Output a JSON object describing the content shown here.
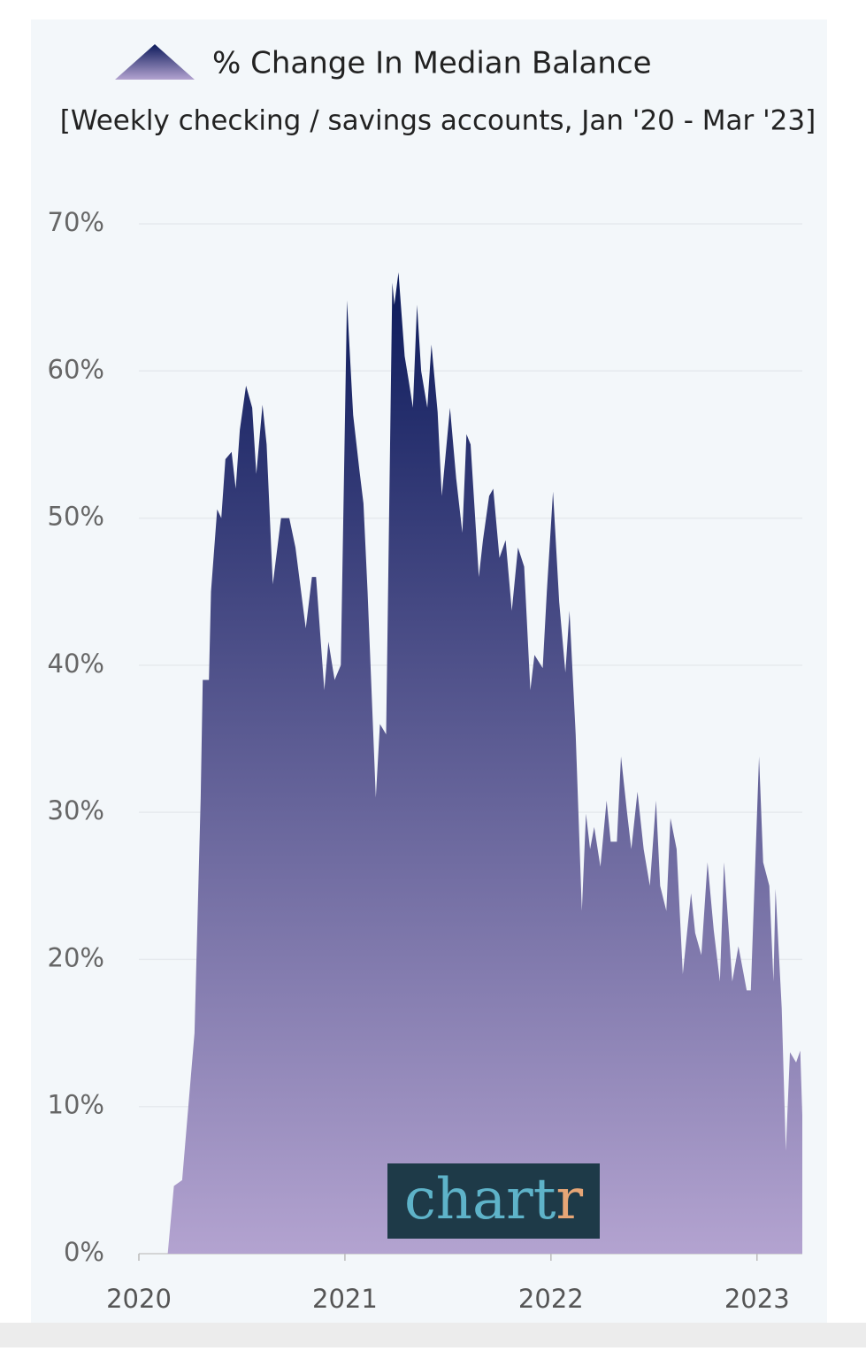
{
  "chart_data": {
    "type": "area",
    "subtitle": "[Weekly checking / savings accounts, Jan '20 - Mar '23]",
    "x": [
      2020.14,
      2020.17,
      2020.21,
      2020.24,
      2020.27,
      2020.3,
      2020.31,
      2020.34,
      2020.35,
      2020.38,
      2020.4,
      2020.42,
      2020.45,
      2020.47,
      2020.49,
      2020.52,
      2020.55,
      2020.57,
      2020.6,
      2020.62,
      2020.65,
      2020.69,
      2020.73,
      2020.76,
      2020.81,
      2020.84,
      2020.86,
      2020.9,
      2020.92,
      2020.95,
      2020.98,
      2021.01,
      2021.04,
      2021.07,
      2021.09,
      2021.11,
      2021.15,
      2021.17,
      2021.2,
      2021.23,
      2021.24,
      2021.26,
      2021.29,
      2021.31,
      2021.33,
      2021.35,
      2021.37,
      2021.4,
      2021.42,
      2021.45,
      2021.47,
      2021.51,
      2021.54,
      2021.57,
      2021.59,
      2021.61,
      2021.65,
      2021.67,
      2021.7,
      2021.72,
      2021.75,
      2021.78,
      2021.81,
      2021.84,
      2021.87,
      2021.9,
      2021.92,
      2021.96,
      2021.98,
      2022.01,
      2022.04,
      2022.07,
      2022.09,
      2022.12,
      2022.15,
      2022.17,
      2022.19,
      2022.21,
      2022.24,
      2022.27,
      2022.29,
      2022.32,
      2022.34,
      2022.37,
      2022.39,
      2022.42,
      2022.45,
      2022.48,
      2022.51,
      2022.53,
      2022.56,
      2022.58,
      2022.61,
      2022.64,
      2022.68,
      2022.7,
      2022.73,
      2022.76,
      2022.79,
      2022.82,
      2022.84,
      2022.88,
      2022.91,
      2022.95,
      2022.97,
      2023.01,
      2023.03,
      2023.06,
      2023.08,
      2023.09,
      2023.12,
      2023.14,
      2023.16,
      2023.19,
      2023.21,
      2023.22
    ],
    "series": [
      {
        "name": "% Change In Median Balance",
        "color": "#0c1a5b",
        "gradient_end": "#b3a3d0",
        "values": [
          0,
          4.6,
          5,
          10,
          15,
          31,
          39,
          39,
          45,
          50.6,
          50,
          54,
          54.5,
          52,
          56,
          59,
          57.5,
          53,
          57.7,
          55,
          45.5,
          50,
          50,
          48,
          42.5,
          46,
          46,
          38.3,
          41.6,
          39,
          40,
          64.8,
          57,
          53.3,
          51,
          45,
          31,
          36,
          35.3,
          66,
          64.5,
          66.7,
          61,
          59.3,
          57.5,
          64.5,
          60,
          57.5,
          61.8,
          57.2,
          51.5,
          57.5,
          52.7,
          49,
          55.7,
          55,
          46,
          48.5,
          51.5,
          52,
          47.3,
          48.5,
          43.7,
          48,
          46.7,
          38.3,
          40.7,
          39.8,
          45,
          51.8,
          44.3,
          39.5,
          43.7,
          35.3,
          23.3,
          29.9,
          27.5,
          29,
          26.3,
          30.8,
          28,
          28,
          33.8,
          29.9,
          27.5,
          31.4,
          27.5,
          25,
          30.8,
          25,
          23.3,
          29.6,
          27.5,
          19,
          24.5,
          21.8,
          20.3,
          26.6,
          22,
          18.5,
          26.6,
          18.5,
          20.9,
          17.9,
          17.9,
          33.8,
          26.6,
          25,
          18.5,
          24.8,
          16.7,
          7,
          13.7,
          13,
          13.8,
          9.4
        ]
      }
    ],
    "xlim": [
      2020,
      2023.22
    ],
    "xticks": [
      2020,
      2021,
      2022,
      2023
    ],
    "ylim": [
      0,
      70
    ],
    "yticks": [
      {
        "value": 0,
        "label": "0%"
      },
      {
        "value": 10,
        "label": "10%"
      },
      {
        "value": 20,
        "label": "20%"
      },
      {
        "value": 30,
        "label": "30%"
      },
      {
        "value": 40,
        "label": "40%"
      },
      {
        "value": 50,
        "label": "50%"
      },
      {
        "value": 60,
        "label": "60%"
      },
      {
        "value": 70,
        "label": "70%"
      }
    ],
    "grid": true
  },
  "logo": {
    "main": "chart",
    "accent": "r"
  }
}
